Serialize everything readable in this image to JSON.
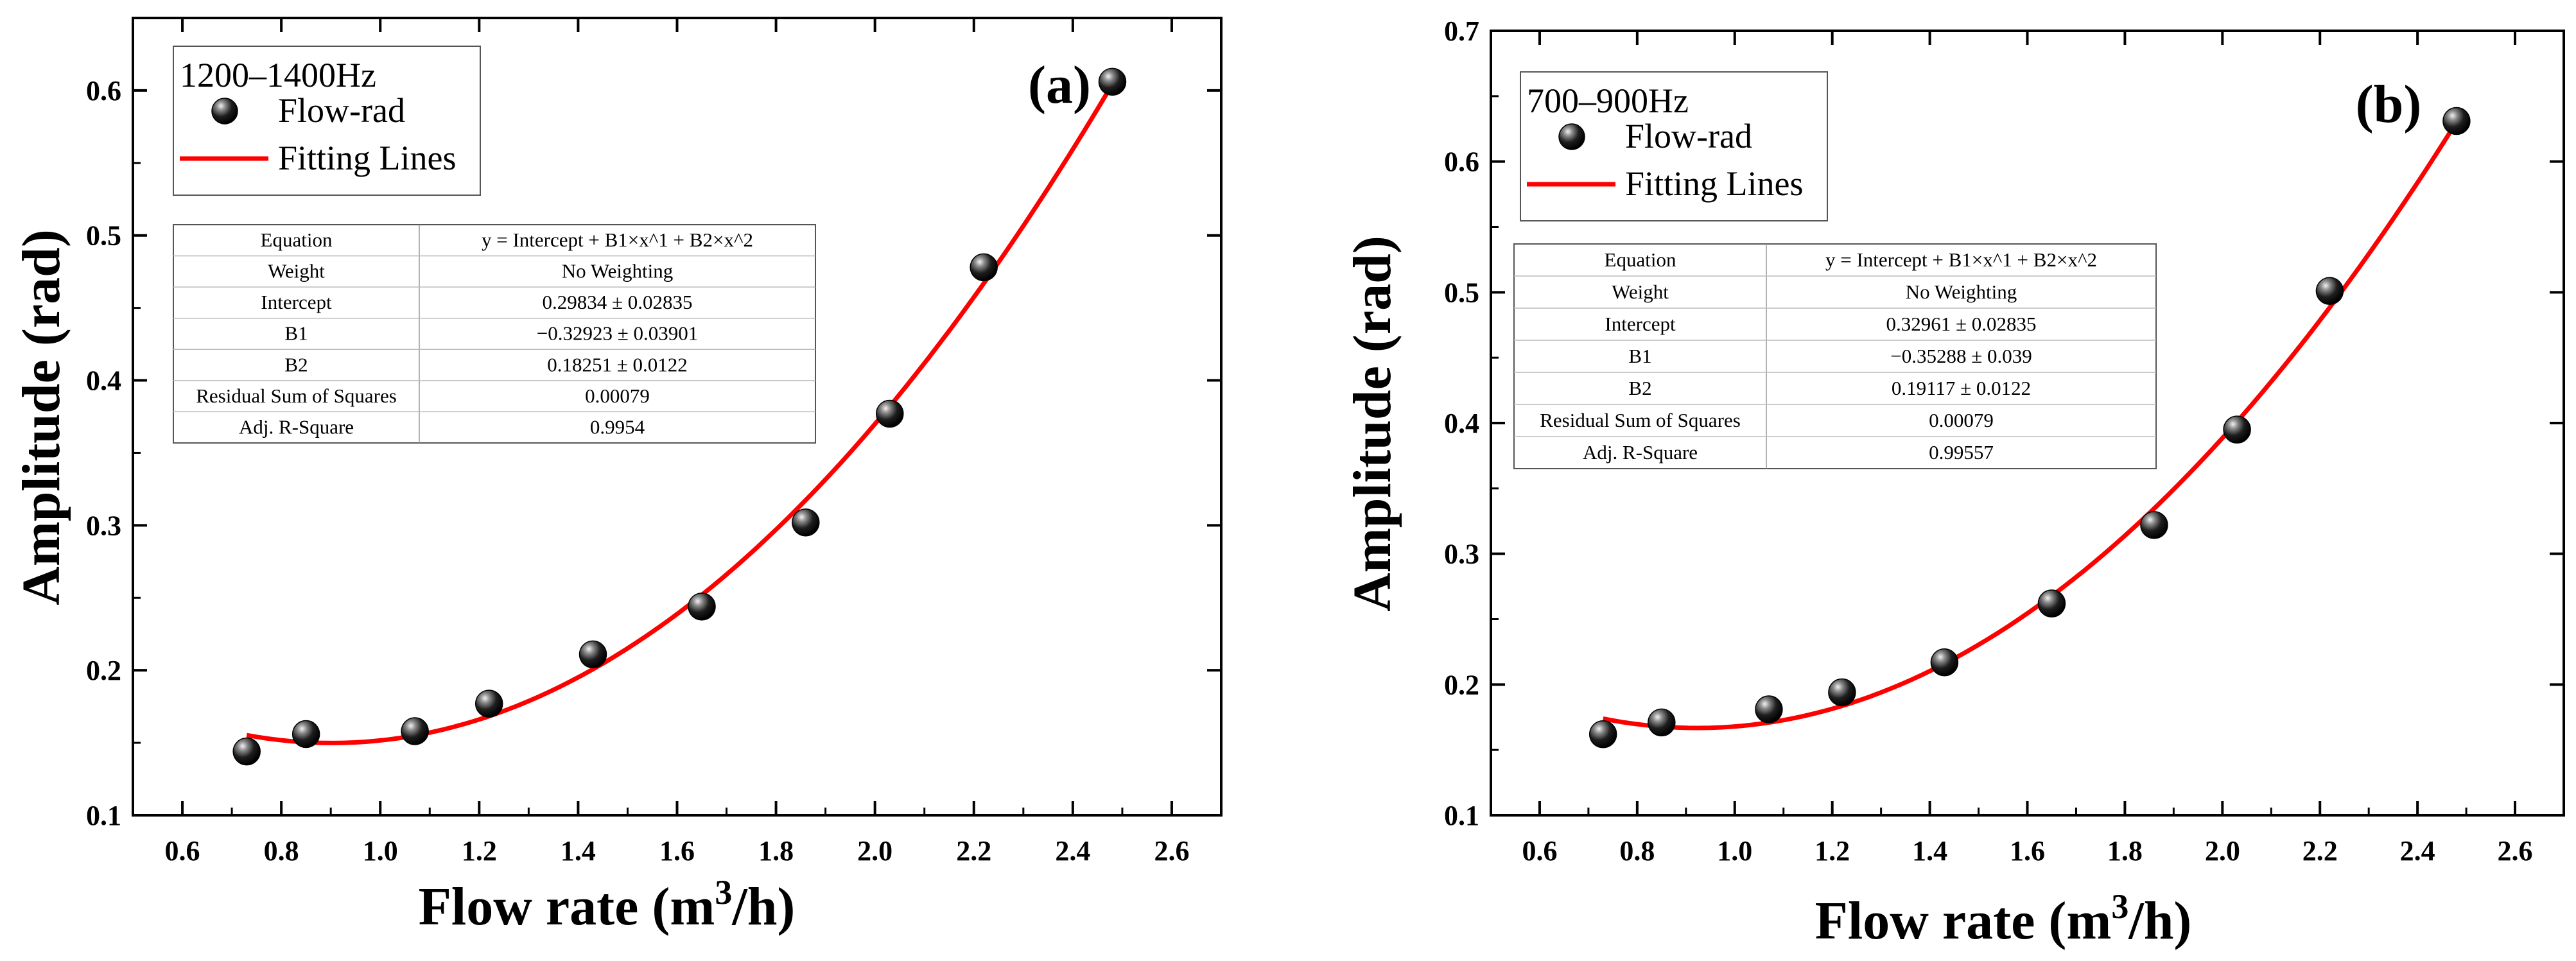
{
  "chart_data": [
    {
      "type": "scatter",
      "panel_label": "(a)",
      "xlabel": "Flow rate (m³/h)",
      "xlabel_parts": {
        "main": "Flow rate (m",
        "sup": "3",
        "end": "/h)"
      },
      "ylabel": "Amplitude (rad)",
      "xlim": [
        0.5,
        2.7
      ],
      "ylim": [
        0.1,
        0.65
      ],
      "xticks": [
        0.6,
        0.8,
        1.0,
        1.2,
        1.4,
        1.6,
        1.8,
        2.0,
        2.2,
        2.4,
        2.6
      ],
      "yticks": [
        0.1,
        0.2,
        0.3,
        0.4,
        0.5,
        0.6
      ],
      "legend": {
        "title": "1200–1400Hz",
        "entries": [
          {
            "label": "Flow-rad",
            "kind": "marker"
          },
          {
            "label": "Fitting Lines",
            "kind": "line"
          }
        ]
      },
      "series": [
        {
          "name": "Flow-rad",
          "x": [
            0.73,
            0.85,
            1.07,
            1.22,
            1.43,
            1.65,
            1.86,
            2.03,
            2.22,
            2.48
          ],
          "y": [
            0.144,
            0.156,
            0.158,
            0.177,
            0.211,
            0.244,
            0.302,
            0.377,
            0.478,
            0.606
          ]
        }
      ],
      "fit": {
        "name": "Fitting Lines",
        "intercept": 0.29834,
        "b1": -0.32923,
        "b2": 0.18251,
        "x_range": [
          0.73,
          2.48
        ],
        "color": "#ff0000"
      },
      "fit_table": [
        [
          "Equation",
          "y = Intercept + B1×x^1 + B2×x^2"
        ],
        [
          "Weight",
          "No Weighting"
        ],
        [
          "Intercept",
          "0.29834 ± 0.02835"
        ],
        [
          "B1",
          "−0.32923 ± 0.03901"
        ],
        [
          "B2",
          "0.18251 ± 0.0122"
        ],
        [
          "Residual Sum of Squares",
          "0.00079"
        ],
        [
          "Adj. R-Square",
          "0.9954"
        ]
      ]
    },
    {
      "type": "scatter",
      "panel_label": "(b)",
      "xlabel": "Flow rate (m³/h)",
      "xlabel_parts": {
        "main": "Flow rate (m",
        "sup": "3",
        "end": "/h)"
      },
      "ylabel": "Amplitude (rad)",
      "xlim": [
        0.5,
        2.7
      ],
      "ylim": [
        0.1,
        0.7
      ],
      "xticks": [
        0.6,
        0.8,
        1.0,
        1.2,
        1.4,
        1.6,
        1.8,
        2.0,
        2.2,
        2.4,
        2.6
      ],
      "yticks": [
        0.1,
        0.2,
        0.3,
        0.4,
        0.5,
        0.6,
        0.7
      ],
      "legend": {
        "title": "700–900Hz",
        "entries": [
          {
            "label": "Flow-rad",
            "kind": "marker"
          },
          {
            "label": "Fitting Lines",
            "kind": "line"
          }
        ]
      },
      "series": [
        {
          "name": "Flow-rad",
          "x": [
            0.73,
            0.85,
            1.07,
            1.22,
            1.43,
            1.65,
            1.86,
            2.03,
            2.22,
            2.48
          ],
          "y": [
            0.162,
            0.171,
            0.181,
            0.194,
            0.217,
            0.262,
            0.322,
            0.395,
            0.501,
            0.631
          ]
        }
      ],
      "fit": {
        "name": "Fitting Lines",
        "intercept": 0.32961,
        "b1": -0.35288,
        "b2": 0.19117,
        "x_range": [
          0.73,
          2.48
        ],
        "color": "#ff0000"
      },
      "fit_table": [
        [
          "Equation",
          "y = Intercept + B1×x^1 + B2×x^2"
        ],
        [
          "Weight",
          "No Weighting"
        ],
        [
          "Intercept",
          "0.32961 ± 0.02835"
        ],
        [
          "B1",
          "−0.35288 ± 0.039"
        ],
        [
          "B2",
          "0.19117 ± 0.0122"
        ],
        [
          "Residual Sum of Squares",
          "0.00079"
        ],
        [
          "Adj. R-Square",
          "0.99557"
        ]
      ]
    }
  ]
}
